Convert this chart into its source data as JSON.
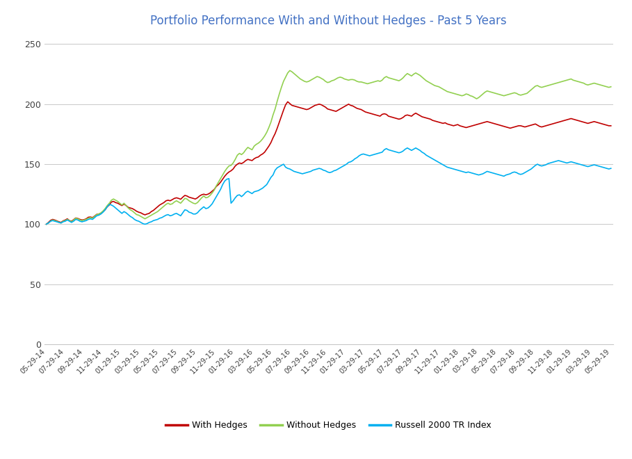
{
  "title": "Portfolio Performance With and Without Hedges - Past 5 Years",
  "title_color": "#4472C4",
  "title_fontsize": 12,
  "ylim": [
    0,
    260
  ],
  "yticks": [
    0,
    50,
    100,
    150,
    200,
    250
  ],
  "background_color": "#FFFFFF",
  "grid_color": "#C8C8C8",
  "line_colors": {
    "with_hedges": "#C00000",
    "without_hedges": "#92D050",
    "russell": "#00B0F0"
  },
  "legend_labels": [
    "With Hedges",
    "Without Hedges",
    "Russell 2000 TR Index"
  ],
  "xtick_step": 2,
  "xtick_dates": [
    "05-29-14",
    "07-29-14",
    "09-29-14",
    "11-29-14",
    "01-29-15",
    "03-29-15",
    "05-29-15",
    "07-29-15",
    "09-29-15",
    "11-29-15",
    "01-29-16",
    "03-29-16",
    "05-29-16",
    "07-29-16",
    "09-29-16",
    "11-29-16",
    "01-29-17",
    "03-29-17",
    "05-29-17",
    "07-29-17",
    "09-29-17",
    "11-29-17",
    "01-29-18",
    "03-29-18",
    "05-29-18",
    "07-29-18",
    "09-29-18",
    "11-29-18",
    "01-29-19",
    "03-29-19",
    "05-29-19"
  ],
  "with_hedges": [
    100.0,
    101.5,
    103.2,
    104.0,
    103.5,
    102.8,
    102.0,
    101.5,
    102.8,
    103.5,
    104.5,
    103.0,
    102.5,
    103.8,
    105.2,
    104.8,
    104.0,
    103.5,
    103.8,
    104.5,
    105.8,
    106.0,
    105.5,
    106.8,
    108.2,
    108.5,
    109.0,
    110.5,
    112.0,
    114.5,
    116.0,
    118.5,
    119.0,
    118.0,
    117.5,
    116.5,
    115.5,
    116.8,
    115.5,
    114.0,
    113.5,
    113.0,
    112.0,
    110.8,
    110.0,
    109.5,
    108.5,
    107.8,
    108.5,
    109.0,
    110.5,
    111.5,
    113.0,
    114.5,
    116.0,
    117.0,
    118.0,
    119.5,
    120.0,
    119.5,
    120.5,
    121.5,
    122.0,
    121.5,
    120.8,
    122.5,
    124.0,
    123.5,
    122.5,
    122.0,
    121.5,
    121.0,
    122.0,
    123.5,
    124.5,
    125.0,
    124.5,
    125.0,
    126.0,
    127.5,
    129.0,
    131.5,
    133.0,
    135.0,
    137.5,
    140.0,
    142.0,
    143.5,
    144.5,
    146.0,
    148.5,
    150.0,
    151.0,
    150.5,
    151.5,
    153.0,
    154.0,
    153.5,
    153.0,
    154.5,
    155.5,
    156.0,
    157.5,
    158.5,
    160.0,
    162.5,
    165.0,
    168.0,
    172.0,
    175.5,
    180.0,
    185.0,
    190.0,
    195.0,
    199.5,
    202.0,
    200.5,
    199.0,
    198.5,
    198.0,
    197.5,
    197.0,
    196.5,
    196.0,
    195.5,
    196.0,
    197.0,
    198.0,
    199.0,
    199.5,
    200.0,
    199.5,
    198.5,
    197.5,
    196.0,
    195.5,
    195.0,
    194.5,
    194.0,
    195.0,
    196.0,
    197.0,
    198.0,
    199.0,
    200.0,
    199.0,
    198.5,
    197.5,
    196.5,
    196.0,
    195.5,
    194.5,
    193.5,
    193.0,
    192.5,
    192.0,
    191.5,
    191.0,
    190.5,
    190.0,
    191.5,
    192.0,
    191.5,
    190.0,
    189.5,
    189.0,
    188.5,
    188.0,
    187.5,
    188.0,
    189.0,
    190.5,
    191.0,
    190.5,
    190.0,
    191.5,
    192.5,
    191.5,
    190.5,
    189.5,
    189.0,
    188.5,
    188.0,
    187.5,
    186.5,
    186.0,
    185.5,
    185.0,
    184.5,
    184.0,
    184.5,
    183.5,
    183.0,
    182.5,
    182.0,
    182.5,
    183.0,
    182.0,
    181.5,
    181.0,
    180.5,
    181.0,
    181.5,
    182.0,
    182.5,
    183.0,
    183.5,
    184.0,
    184.5,
    185.0,
    185.5,
    185.0,
    184.5,
    184.0,
    183.5,
    183.0,
    182.5,
    182.0,
    181.5,
    181.0,
    180.5,
    180.0,
    180.5,
    181.0,
    181.5,
    182.0,
    182.0,
    181.5,
    181.0,
    181.5,
    182.0,
    182.5,
    183.0,
    183.5,
    182.5,
    181.5,
    181.0,
    181.5,
    182.0,
    182.5,
    183.0,
    183.5,
    184.0,
    184.5,
    185.0,
    185.5,
    186.0,
    186.5,
    187.0,
    187.5,
    188.0,
    187.5,
    187.0,
    186.5,
    186.0,
    185.5,
    185.0,
    184.5,
    184.0,
    184.5,
    185.0,
    185.5,
    185.0,
    184.5,
    184.0,
    183.5,
    183.0,
    182.5,
    182.0,
    182.0
  ],
  "without_hedges": [
    100.0,
    101.0,
    102.5,
    103.5,
    103.0,
    102.5,
    101.5,
    101.0,
    102.5,
    103.0,
    104.0,
    103.0,
    102.0,
    103.5,
    105.0,
    104.5,
    103.5,
    103.0,
    103.5,
    104.0,
    105.0,
    105.5,
    105.0,
    106.5,
    108.0,
    108.5,
    109.5,
    111.0,
    113.0,
    115.5,
    117.5,
    120.0,
    121.0,
    120.0,
    119.0,
    117.5,
    116.0,
    117.5,
    115.5,
    113.5,
    112.0,
    111.0,
    109.5,
    108.0,
    107.5,
    106.5,
    105.5,
    104.5,
    105.5,
    106.5,
    107.5,
    108.5,
    109.5,
    110.5,
    112.0,
    113.5,
    115.0,
    116.5,
    117.5,
    116.5,
    117.0,
    118.5,
    119.5,
    118.5,
    117.5,
    119.5,
    121.5,
    121.0,
    119.5,
    118.5,
    117.5,
    117.0,
    118.0,
    120.0,
    122.0,
    123.5,
    122.0,
    122.5,
    124.0,
    126.0,
    128.5,
    132.0,
    135.0,
    138.0,
    141.0,
    144.0,
    146.5,
    148.5,
    149.0,
    151.0,
    154.0,
    157.5,
    159.0,
    158.0,
    159.5,
    162.0,
    164.0,
    163.0,
    162.0,
    165.0,
    166.5,
    167.5,
    169.0,
    171.0,
    173.5,
    176.5,
    180.5,
    185.0,
    191.0,
    196.0,
    202.5,
    208.5,
    214.0,
    219.0,
    222.5,
    226.0,
    228.0,
    227.0,
    225.5,
    224.0,
    222.5,
    221.0,
    220.0,
    219.0,
    218.5,
    219.0,
    220.0,
    221.0,
    222.0,
    223.0,
    222.5,
    221.5,
    220.5,
    219.0,
    218.0,
    218.5,
    219.5,
    220.0,
    221.0,
    222.0,
    222.5,
    222.0,
    221.0,
    220.5,
    220.0,
    220.5,
    220.5,
    220.0,
    219.0,
    218.5,
    218.5,
    218.0,
    217.5,
    217.0,
    217.5,
    218.0,
    218.5,
    219.0,
    219.5,
    219.0,
    220.0,
    222.0,
    223.0,
    222.0,
    221.5,
    221.0,
    220.5,
    220.0,
    219.5,
    220.5,
    222.0,
    224.0,
    225.5,
    224.5,
    223.5,
    225.0,
    226.0,
    225.0,
    224.0,
    222.5,
    221.0,
    219.5,
    218.5,
    217.5,
    216.5,
    215.5,
    215.0,
    214.5,
    213.5,
    212.5,
    211.5,
    210.5,
    210.0,
    209.5,
    209.0,
    208.5,
    208.0,
    207.5,
    207.0,
    207.5,
    208.5,
    208.0,
    207.0,
    206.5,
    205.5,
    204.5,
    205.5,
    207.0,
    208.5,
    210.0,
    211.0,
    210.5,
    210.0,
    209.5,
    209.0,
    208.5,
    208.0,
    207.5,
    207.0,
    207.5,
    208.0,
    208.5,
    209.0,
    209.5,
    209.0,
    208.0,
    207.5,
    208.0,
    208.5,
    209.0,
    210.5,
    212.0,
    213.5,
    215.0,
    215.5,
    214.5,
    214.0,
    214.5,
    215.0,
    215.5,
    216.0,
    216.5,
    217.0,
    217.5,
    218.0,
    218.5,
    219.0,
    219.5,
    220.0,
    220.5,
    221.0,
    220.0,
    219.5,
    219.0,
    218.5,
    218.0,
    217.5,
    216.5,
    216.0,
    216.5,
    217.0,
    217.5,
    217.0,
    216.5,
    216.0,
    215.5,
    215.0,
    214.5,
    214.0,
    214.5
  ],
  "russell": [
    100.0,
    101.0,
    102.5,
    103.0,
    102.5,
    102.0,
    101.5,
    101.0,
    102.0,
    102.5,
    103.5,
    102.5,
    101.5,
    102.5,
    104.0,
    103.5,
    102.5,
    102.0,
    102.5,
    103.0,
    104.0,
    104.5,
    104.0,
    105.5,
    107.0,
    107.5,
    108.5,
    110.0,
    112.0,
    114.5,
    116.5,
    116.0,
    115.0,
    113.5,
    112.0,
    110.5,
    109.0,
    110.5,
    109.5,
    108.0,
    106.5,
    105.5,
    104.0,
    103.0,
    102.5,
    101.5,
    100.5,
    100.0,
    100.5,
    101.5,
    102.0,
    103.0,
    103.5,
    104.0,
    105.0,
    105.5,
    106.5,
    107.5,
    108.0,
    107.0,
    107.5,
    108.5,
    109.0,
    108.0,
    107.0,
    109.5,
    112.0,
    111.5,
    110.0,
    109.5,
    108.5,
    108.5,
    109.5,
    111.5,
    113.0,
    114.5,
    113.0,
    113.5,
    115.0,
    117.0,
    120.0,
    123.0,
    126.0,
    129.0,
    133.0,
    136.0,
    137.5,
    138.0,
    117.5,
    119.5,
    122.0,
    124.0,
    124.5,
    123.0,
    124.5,
    126.5,
    127.5,
    126.5,
    125.5,
    127.0,
    127.5,
    128.0,
    129.0,
    130.0,
    131.5,
    133.0,
    136.0,
    139.0,
    141.0,
    145.0,
    147.0,
    148.0,
    149.0,
    150.0,
    147.5,
    146.5,
    146.0,
    145.0,
    144.0,
    143.5,
    143.0,
    142.5,
    142.0,
    142.5,
    143.0,
    143.5,
    144.0,
    145.0,
    145.5,
    146.0,
    146.5,
    146.0,
    145.0,
    144.5,
    143.5,
    143.0,
    143.5,
    144.5,
    145.0,
    146.0,
    147.0,
    148.0,
    149.0,
    150.0,
    151.5,
    152.0,
    153.0,
    154.5,
    155.5,
    157.0,
    158.0,
    158.5,
    158.0,
    157.5,
    157.0,
    157.5,
    158.0,
    158.5,
    159.0,
    159.5,
    160.0,
    162.0,
    163.0,
    162.0,
    161.5,
    161.0,
    160.5,
    160.0,
    159.5,
    160.0,
    161.0,
    162.5,
    163.5,
    162.5,
    161.5,
    162.5,
    163.5,
    162.5,
    161.5,
    160.0,
    159.0,
    157.5,
    156.5,
    155.5,
    154.5,
    153.5,
    152.5,
    151.5,
    150.5,
    149.5,
    148.5,
    147.5,
    147.0,
    146.5,
    146.0,
    145.5,
    145.0,
    144.5,
    144.0,
    143.5,
    143.0,
    143.5,
    143.0,
    142.5,
    142.0,
    141.5,
    141.0,
    141.5,
    142.0,
    143.0,
    144.0,
    143.5,
    143.0,
    142.5,
    142.0,
    141.5,
    141.0,
    140.5,
    140.0,
    141.0,
    141.5,
    142.0,
    143.0,
    143.5,
    143.0,
    142.0,
    141.5,
    142.0,
    143.0,
    144.0,
    145.0,
    146.0,
    147.5,
    149.0,
    150.0,
    149.0,
    148.5,
    149.0,
    149.5,
    150.5,
    151.0,
    151.5,
    152.0,
    152.5,
    153.0,
    152.5,
    152.0,
    151.5,
    151.0,
    151.5,
    152.0,
    151.5,
    151.0,
    150.5,
    150.0,
    149.5,
    149.0,
    148.5,
    148.0,
    148.5,
    149.0,
    149.5,
    149.0,
    148.5,
    148.0,
    147.5,
    147.0,
    146.5,
    146.0,
    146.5
  ]
}
